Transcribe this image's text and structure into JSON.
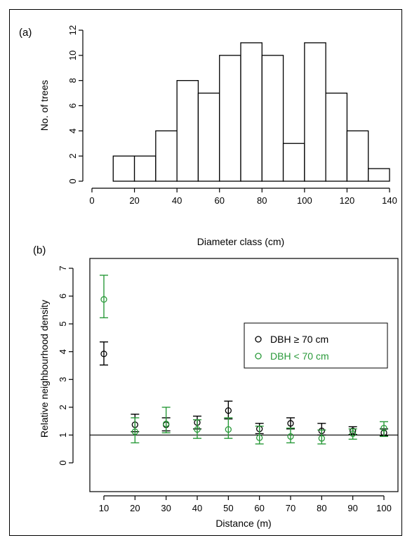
{
  "chart_data": [
    {
      "type": "bar",
      "panel_label": "(a)",
      "xlabel": "Diameter class (cm)",
      "ylabel": "No. of trees",
      "bin_edges": [
        0,
        10,
        20,
        30,
        40,
        50,
        60,
        70,
        80,
        90,
        100,
        110,
        120,
        130,
        140
      ],
      "values": [
        0,
        2,
        2,
        4,
        8,
        7,
        10,
        11,
        10,
        3,
        11,
        7,
        4,
        1
      ],
      "xlim": [
        0,
        140
      ],
      "ylim": [
        0,
        12
      ],
      "xticks": [
        "0",
        "20",
        "40",
        "60",
        "80",
        "100",
        "120",
        "140"
      ],
      "yticks": [
        "0",
        "2",
        "4",
        "6",
        "8",
        "10",
        "12"
      ],
      "colors": {
        "bar_fill": "#ffffff",
        "bar_edge": "#000000"
      }
    },
    {
      "type": "scatter",
      "panel_label": "(b)",
      "xlabel": "Distance (m)",
      "ylabel": "Relative neighbourhood density",
      "categories": [
        "10",
        "20",
        "30",
        "40",
        "50",
        "60",
        "70",
        "80",
        "90",
        "100"
      ],
      "x": [
        10,
        20,
        30,
        40,
        50,
        60,
        70,
        80,
        90,
        100
      ],
      "ylim": [
        0,
        7
      ],
      "yticks": [
        "0",
        "1",
        "2",
        "3",
        "4",
        "5",
        "6",
        "7"
      ],
      "reference_line": 1,
      "legend_position": "right",
      "series": [
        {
          "name": "DBH ≥ 70 cm",
          "color": "#000000",
          "values": [
            3.92,
            1.37,
            1.37,
            1.45,
            1.88,
            1.22,
            1.42,
            1.15,
            1.15,
            1.08
          ],
          "lower": [
            3.52,
            1.12,
            1.15,
            1.22,
            1.58,
            1.05,
            1.22,
            1.0,
            1.02,
            0.97
          ],
          "upper": [
            4.35,
            1.75,
            1.62,
            1.68,
            2.22,
            1.42,
            1.62,
            1.42,
            1.3,
            1.22
          ]
        },
        {
          "name": "DBH < 70 cm",
          "color": "#2a9a3a",
          "values": [
            5.88,
            1.12,
            1.4,
            1.2,
            1.2,
            0.9,
            0.95,
            0.88,
            1.05,
            1.25
          ],
          "lower": [
            5.22,
            0.72,
            1.08,
            0.88,
            0.88,
            0.68,
            0.72,
            0.68,
            0.85,
            0.95
          ],
          "upper": [
            6.75,
            1.62,
            2.0,
            1.55,
            1.62,
            1.32,
            1.25,
            1.18,
            1.22,
            1.48
          ]
        }
      ]
    }
  ]
}
